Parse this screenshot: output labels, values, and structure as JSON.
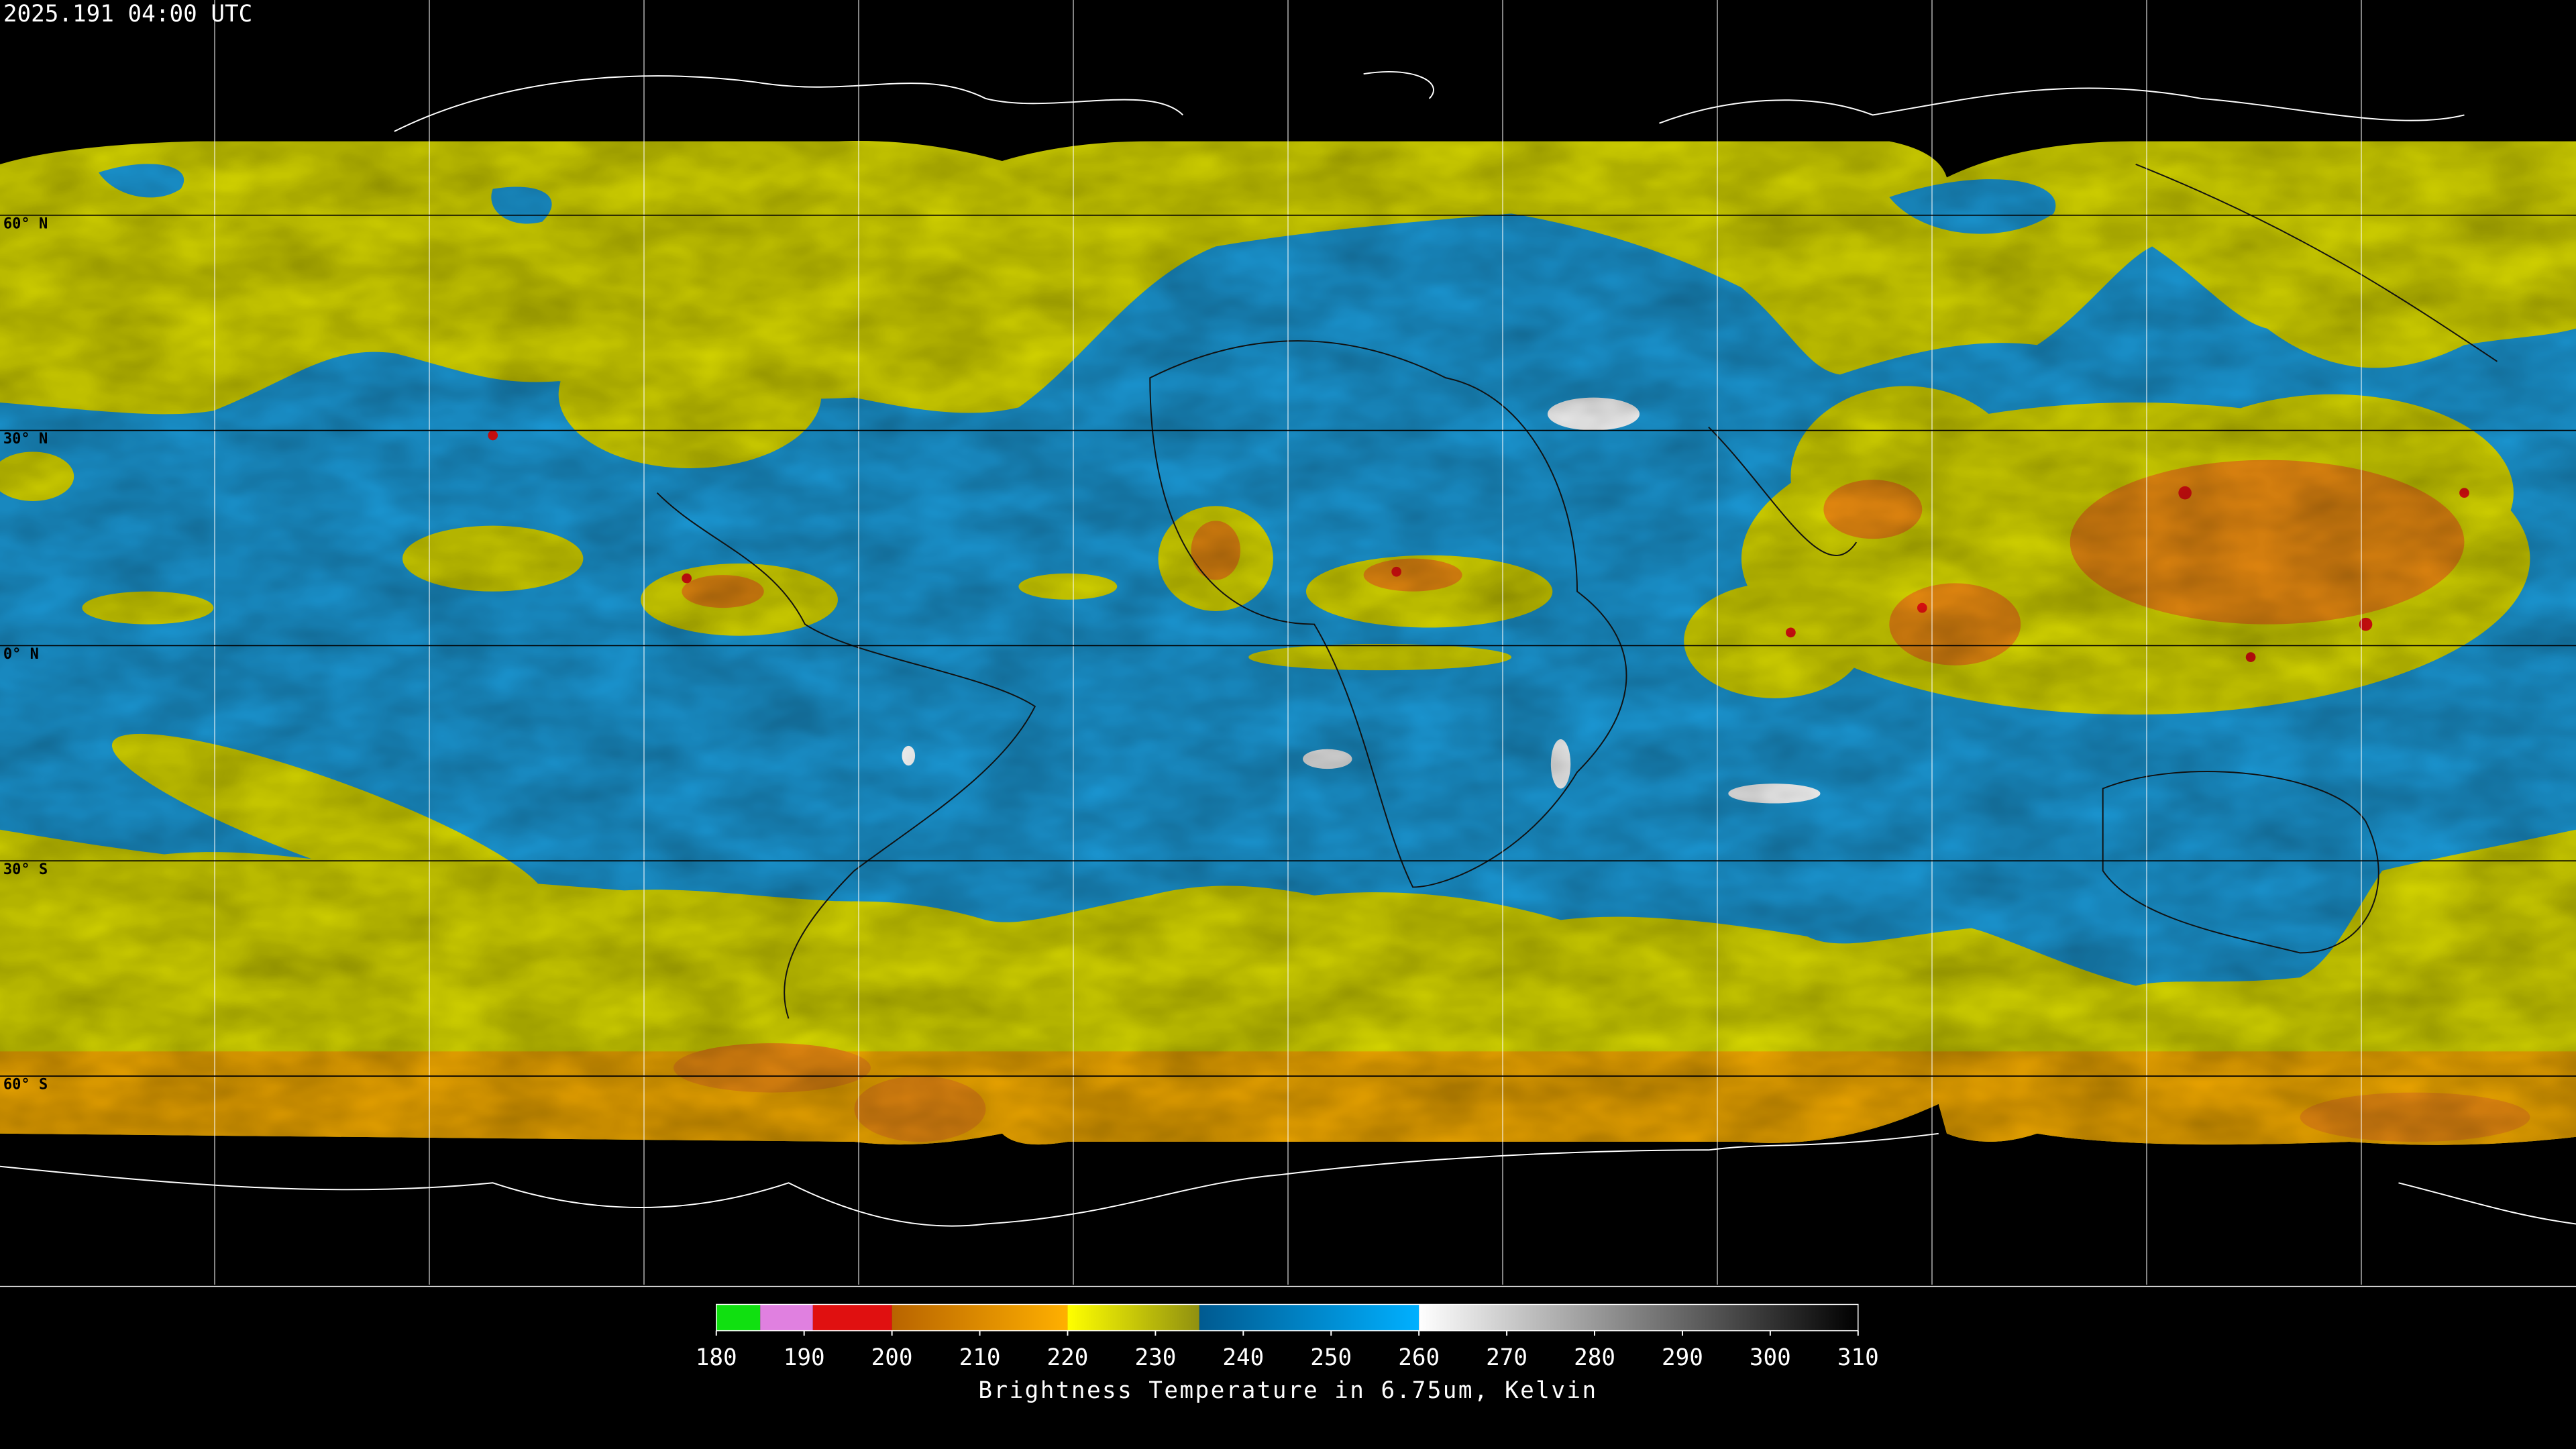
{
  "header": {
    "timestamp": "2025.191 04:00 UTC"
  },
  "map": {
    "lat_lim": [
      -90,
      90
    ],
    "latitude_lines": [
      {
        "value": 60,
        "label": "60° N"
      },
      {
        "value": 30,
        "label": "30° N"
      },
      {
        "value": 0,
        "label": "0° N"
      },
      {
        "value": -30,
        "label": "30° S"
      },
      {
        "value": -60,
        "label": "60° S"
      }
    ]
  },
  "colorbar": {
    "title": "Brightness Temperature in 6.75um, Kelvin",
    "lim": [
      180,
      310
    ],
    "ticks": [
      180,
      190,
      200,
      210,
      220,
      230,
      240,
      250,
      260,
      270,
      280,
      290,
      300,
      310
    ],
    "segments": [
      {
        "from": 180,
        "to": 185,
        "colors": [
          "#10e010",
          "#10e010"
        ]
      },
      {
        "from": 185,
        "to": 191,
        "colors": [
          "#e080e0",
          "#e080e0"
        ]
      },
      {
        "from": 191,
        "to": 200,
        "colors": [
          "#e01010",
          "#e01010"
        ]
      },
      {
        "from": 200,
        "to": 220,
        "colors": [
          "#b86400",
          "#ffb000"
        ]
      },
      {
        "from": 220,
        "to": 235,
        "colors": [
          "#ffff00",
          "#909010"
        ]
      },
      {
        "from": 235,
        "to": 260,
        "colors": [
          "#005a90",
          "#00b0ff"
        ]
      },
      {
        "from": 260,
        "to": 310,
        "colors": [
          "#ffffff",
          "#000000"
        ]
      }
    ]
  }
}
